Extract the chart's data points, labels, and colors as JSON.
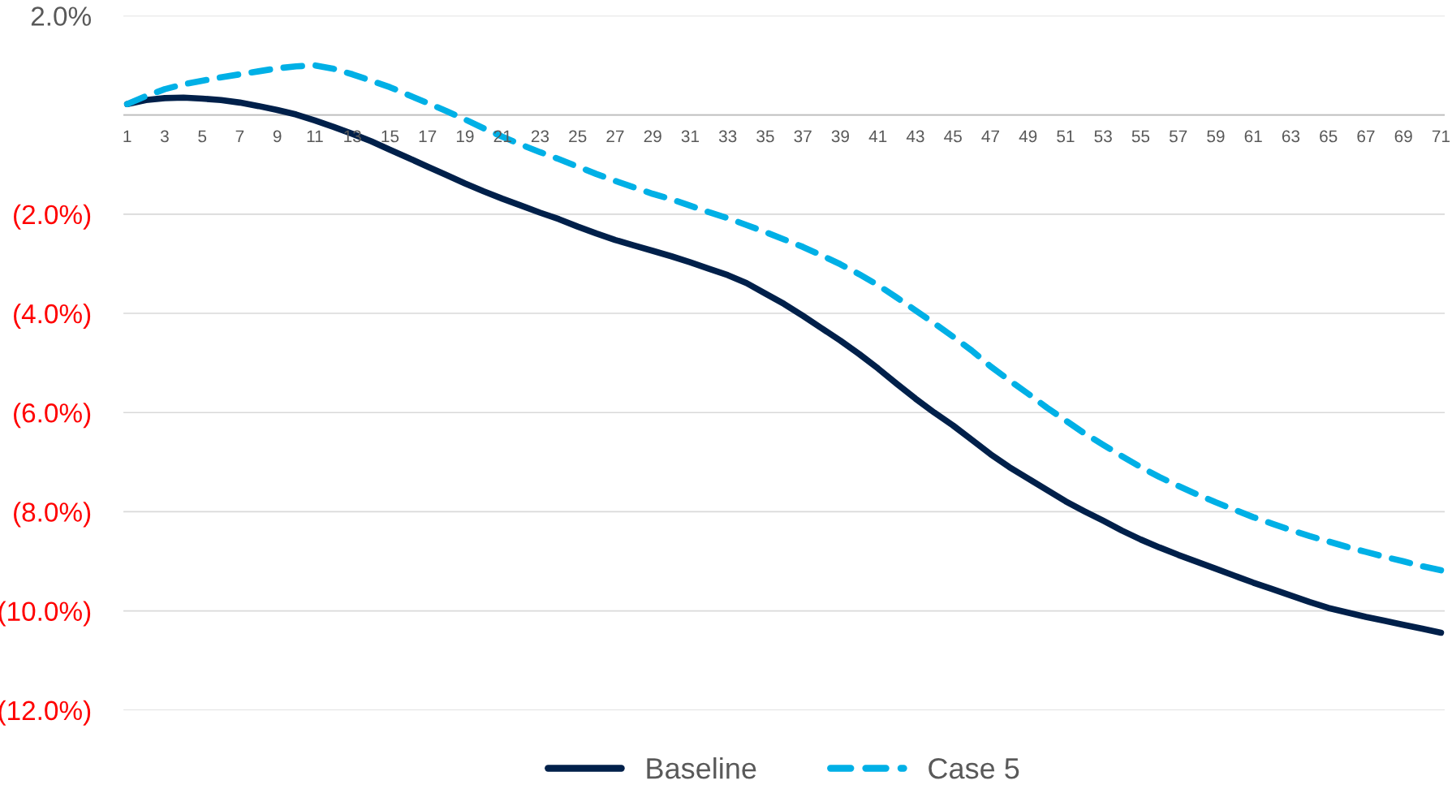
{
  "chart_data": {
    "type": "line",
    "categories": [
      "1",
      null,
      "3",
      null,
      "5",
      null,
      "7",
      null,
      "9",
      null,
      "11",
      null,
      "13",
      null,
      "15",
      null,
      "17",
      null,
      "19",
      null,
      "21",
      null,
      "23",
      null,
      "25",
      null,
      "27",
      null,
      "29",
      null,
      "31",
      null,
      "33",
      null,
      "35",
      null,
      "37",
      null,
      "39",
      null,
      "41",
      null,
      "43",
      null,
      "45",
      null,
      "47",
      null,
      "49",
      null,
      "51",
      null,
      "53",
      null,
      "55",
      null,
      "57",
      null,
      "59",
      null,
      "61",
      null,
      "63",
      null,
      "65",
      null,
      "67",
      null,
      "69",
      null,
      "71"
    ],
    "series": [
      {
        "name": "Baseline",
        "color": "#00204a",
        "line_style": "solid",
        "values": [
          0.22,
          0.3,
          0.34,
          0.35,
          0.33,
          0.3,
          0.25,
          0.18,
          0.1,
          0.01,
          -0.11,
          -0.24,
          -0.38,
          -0.53,
          -0.7,
          -0.87,
          -1.04,
          -1.21,
          -1.38,
          -1.54,
          -1.69,
          -1.83,
          -1.97,
          -2.1,
          -2.25,
          -2.39,
          -2.52,
          -2.63,
          -2.74,
          -2.85,
          -2.97,
          -3.1,
          -3.23,
          -3.39,
          -3.6,
          -3.81,
          -4.05,
          -4.3,
          -4.55,
          -4.82,
          -5.11,
          -5.42,
          -5.72,
          -6.0,
          -6.26,
          -6.55,
          -6.84,
          -7.1,
          -7.33,
          -7.56,
          -7.79,
          -7.99,
          -8.18,
          -8.38,
          -8.56,
          -8.72,
          -8.87,
          -9.01,
          -9.15,
          -9.29,
          -9.43,
          -9.56,
          -9.69,
          -9.82,
          -9.94,
          -10.03,
          -10.12,
          -10.2,
          -10.28,
          -10.36,
          -10.44
        ]
      },
      {
        "name": "Case 5",
        "color": "#00b0e6",
        "line_style": "dashed",
        "values": [
          0.22,
          0.38,
          0.52,
          0.62,
          0.69,
          0.76,
          0.82,
          0.88,
          0.94,
          0.98,
          1.0,
          0.93,
          0.82,
          0.69,
          0.56,
          0.4,
          0.24,
          0.08,
          -0.09,
          -0.27,
          -0.44,
          -0.6,
          -0.75,
          -0.89,
          -1.04,
          -1.19,
          -1.33,
          -1.46,
          -1.59,
          -1.7,
          -1.83,
          -1.96,
          -2.08,
          -2.22,
          -2.36,
          -2.51,
          -2.66,
          -2.83,
          -3.01,
          -3.21,
          -3.43,
          -3.68,
          -3.94,
          -4.2,
          -4.47,
          -4.75,
          -5.07,
          -5.35,
          -5.62,
          -5.9,
          -6.16,
          -6.42,
          -6.65,
          -6.88,
          -7.1,
          -7.3,
          -7.48,
          -7.65,
          -7.81,
          -7.96,
          -8.11,
          -8.24,
          -8.37,
          -8.49,
          -8.6,
          -8.71,
          -8.81,
          -8.91,
          -9.0,
          -9.1,
          -9.18
        ]
      }
    ],
    "ylim": [
      -12,
      2
    ],
    "yticks": [
      {
        "value": 2,
        "label": "2.0%"
      },
      {
        "value": 0,
        "label": null
      },
      {
        "value": -2,
        "label": "(2.0%)"
      },
      {
        "value": -4,
        "label": "(4.0%)"
      },
      {
        "value": -6,
        "label": "(6.0%)"
      },
      {
        "value": -8,
        "label": "(8.0%)"
      },
      {
        "value": -10,
        "label": "(10.0%)"
      },
      {
        "value": -12,
        "label": "(12.0%)"
      }
    ],
    "grid": "y",
    "legend": "bottom",
    "marker": "none"
  }
}
